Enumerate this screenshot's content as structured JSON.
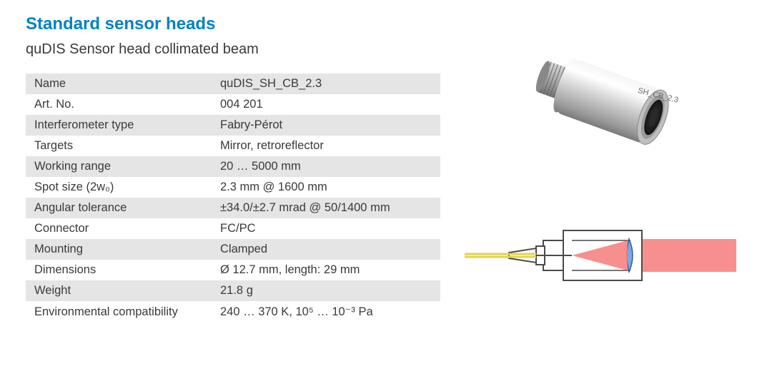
{
  "heading": {
    "title": "Standard sensor heads",
    "subtitle": "quDIS Sensor head collimated beam"
  },
  "colors": {
    "title": "#0083c4",
    "text": "#3a3a3a",
    "row_alt": "#e5e5e5",
    "row_bg": "#ffffff",
    "metal_light": "#e8e8e8",
    "metal_mid": "#bcbcbc",
    "metal_dark": "#8a8a8a",
    "schematic_stroke": "#4a4a4a",
    "beam_red": "#f77b7b",
    "fiber_yellow": "#e6d24a",
    "lens_blue": "#7aa8e6"
  },
  "spec_table": {
    "rows": [
      {
        "label": "Name",
        "value": "quDIS_SH_CB_2.3"
      },
      {
        "label": "Art. No.",
        "value": "004 201"
      },
      {
        "label": "Interferometer type",
        "value": "Fabry-Pérot"
      },
      {
        "label": "Targets",
        "value": "Mirror, retroreflector"
      },
      {
        "label": "Working range",
        "value": "20 … 5000 mm"
      },
      {
        "label": "Spot size (2w₀)",
        "value": "2.3 mm @ 1600 mm"
      },
      {
        "label": "Angular tolerance",
        "value": "±34.0/±2.7 mrad @ 50/1400 mm"
      },
      {
        "label": "Connector",
        "value": "FC/PC"
      },
      {
        "label": "Mounting",
        "value": "Clamped"
      },
      {
        "label": "Dimensions",
        "value": "Ø 12.7 mm, length: 29 mm"
      },
      {
        "label": "Weight",
        "value": "21.8 g"
      },
      {
        "label": "Environmental compatibility",
        "value": "240 … 370 K, 10⁵ … 10⁻³ Pa"
      }
    ]
  },
  "product_photo": {
    "engraving_text": "SH_CB_2.3"
  },
  "schematic": {
    "type": "diagram",
    "description": "cross-section with optical fiber, lens, and collimated beam"
  }
}
